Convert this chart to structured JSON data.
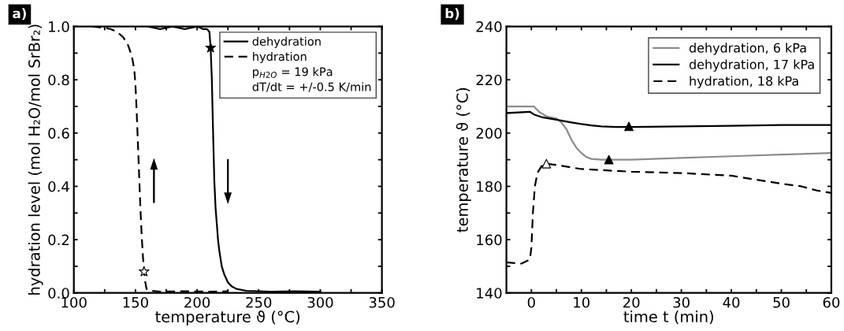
{
  "chart_data": [
    {
      "type": "line",
      "xlabel": "temperature ϑ (°C)",
      "ylabel": "hydration level (mol H₂O/mol SrBr₂)",
      "xlim": [
        100,
        350
      ],
      "ylim": [
        0,
        1.0
      ],
      "xticks": [
        100,
        {
          "value": 125,
          "label": null
        },
        150,
        {
          "value": 175,
          "label": null
        },
        200,
        {
          "value": 225,
          "label": null
        },
        250,
        {
          "value": 275,
          "label": null
        },
        300,
        {
          "value": 325,
          "label": null
        },
        350
      ],
      "yticks": [
        {
          "value": 0,
          "label": "0.0"
        },
        {
          "value": 0.1,
          "label": null
        },
        0.2,
        {
          "value": 0.3,
          "label": null
        },
        0.4,
        {
          "value": 0.5,
          "label": null
        },
        0.6,
        {
          "value": 0.7,
          "label": null
        },
        0.8,
        {
          "value": 0.9,
          "label": null
        },
        {
          "value": 1.0,
          "label": "1.0"
        }
      ],
      "grid": false,
      "legend": "top right",
      "annotations": [
        "a)",
        "p$_{H2O}$ = 19 kPa",
        "dT/dt = +/-0.5 K/min"
      ],
      "series": [
        {
          "name": "dehydration",
          "color": "#000000",
          "line_style": "solid",
          "x": [
            160,
            170,
            180,
            190,
            200,
            205,
            208,
            210,
            211,
            212,
            213,
            214,
            215,
            216,
            217,
            218,
            220,
            222,
            225,
            228,
            232,
            240,
            260,
            280,
            300
          ],
          "values": [
            1.0,
            0.99,
            1.0,
            0.99,
            1.0,
            0.99,
            0.99,
            0.98,
            0.92,
            0.8,
            0.6,
            0.42,
            0.32,
            0.26,
            0.2,
            0.16,
            0.1,
            0.07,
            0.04,
            0.025,
            0.015,
            0.008,
            0.005,
            0.006,
            0.005
          ]
        },
        {
          "name": "hydration",
          "color": "#000000",
          "line_style": "dashed",
          "x": [
            115,
            125,
            130,
            135,
            140,
            144,
            147,
            149,
            150,
            151,
            152,
            153,
            154,
            155,
            156,
            157,
            158,
            159,
            162,
            170,
            190,
            210,
            225
          ],
          "values": [
            1.0,
            0.995,
            0.99,
            0.98,
            0.96,
            0.93,
            0.89,
            0.84,
            0.78,
            0.68,
            0.56,
            0.44,
            0.32,
            0.22,
            0.14,
            0.08,
            0.04,
            0.015,
            0.008,
            0.005,
            0.006,
            0.005,
            0.006
          ]
        },
        {
          "type": "scatter",
          "marker": "star",
          "color": "#000000",
          "x": [
            211
          ],
          "values": [
            0.92
          ]
        },
        {
          "type": "scatter",
          "marker": "star",
          "color": "#ffffff",
          "x": [
            157
          ],
          "values": [
            0.08
          ]
        }
      ]
    },
    {
      "type": "line",
      "xlabel": "time t (min)",
      "ylabel": "temperature ϑ (°C)",
      "xlim": [
        -5,
        60
      ],
      "ylim": [
        140,
        240
      ],
      "xticks": [
        0,
        {
          "value": 5,
          "label": null
        },
        10,
        {
          "value": 15,
          "label": null
        },
        20,
        {
          "value": 25,
          "label": null
        },
        30,
        {
          "value": 35,
          "label": null
        },
        40,
        {
          "value": 45,
          "label": null
        },
        50,
        {
          "value": 55,
          "label": null
        },
        60
      ],
      "yticks": [
        140,
        {
          "value": 150,
          "label": null
        },
        160,
        {
          "value": 170,
          "label": null
        },
        180,
        {
          "value": 190,
          "label": null
        },
        200,
        {
          "value": 210,
          "label": null
        },
        220,
        {
          "value": 230,
          "label": null
        },
        240
      ],
      "grid": false,
      "legend": "top right",
      "annotations": [
        "b)"
      ],
      "series": [
        {
          "name": "dehydration, 6 kPa",
          "color": "#8c8c8c",
          "line_style": "solid",
          "x": [
            -5,
            0.5,
            1.5,
            3,
            5,
            6,
            7,
            8,
            9,
            10,
            11,
            12,
            14,
            16,
            20,
            30,
            40,
            50,
            60
          ],
          "values": [
            210,
            210,
            208,
            206.3,
            205.5,
            204,
            201.5,
            197.5,
            194.5,
            192.5,
            191,
            190.3,
            190,
            190,
            190,
            190.7,
            191.3,
            191.9,
            192.5
          ]
        },
        {
          "name": "dehydration, 17 kPa",
          "color": "#000000",
          "line_style": "solid",
          "x": [
            -5,
            -0.3,
            0.5,
            2,
            5,
            8,
            10,
            12,
            14,
            17,
            20,
            30,
            40,
            50,
            60
          ],
          "values": [
            207.5,
            208,
            207,
            206,
            205,
            204,
            203.4,
            202.9,
            202.5,
            202.3,
            202.3,
            202.5,
            202.7,
            203,
            203
          ]
        },
        {
          "name": "hydration, 18 kPa",
          "color": "#000000",
          "line_style": "dashed",
          "x": [
            -5,
            -2,
            -0.3,
            0,
            0.3,
            0.7,
            1.2,
            2,
            3,
            5,
            10,
            20,
            30,
            40,
            45,
            50,
            54,
            57,
            60
          ],
          "values": [
            151.5,
            151,
            152.5,
            157,
            170,
            180,
            185,
            187.5,
            188.5,
            188,
            186.5,
            185.5,
            185,
            184,
            182.5,
            181,
            180,
            178.5,
            177.5
          ]
        },
        {
          "type": "scatter",
          "marker": "triangle",
          "color": "#000000",
          "x": [
            15.5,
            19.5
          ],
          "values": [
            190,
            202.5
          ]
        },
        {
          "type": "scatter",
          "marker": "triangle",
          "color": "#ffffff",
          "x": [
            3
          ],
          "values": [
            188.5
          ]
        }
      ]
    }
  ]
}
